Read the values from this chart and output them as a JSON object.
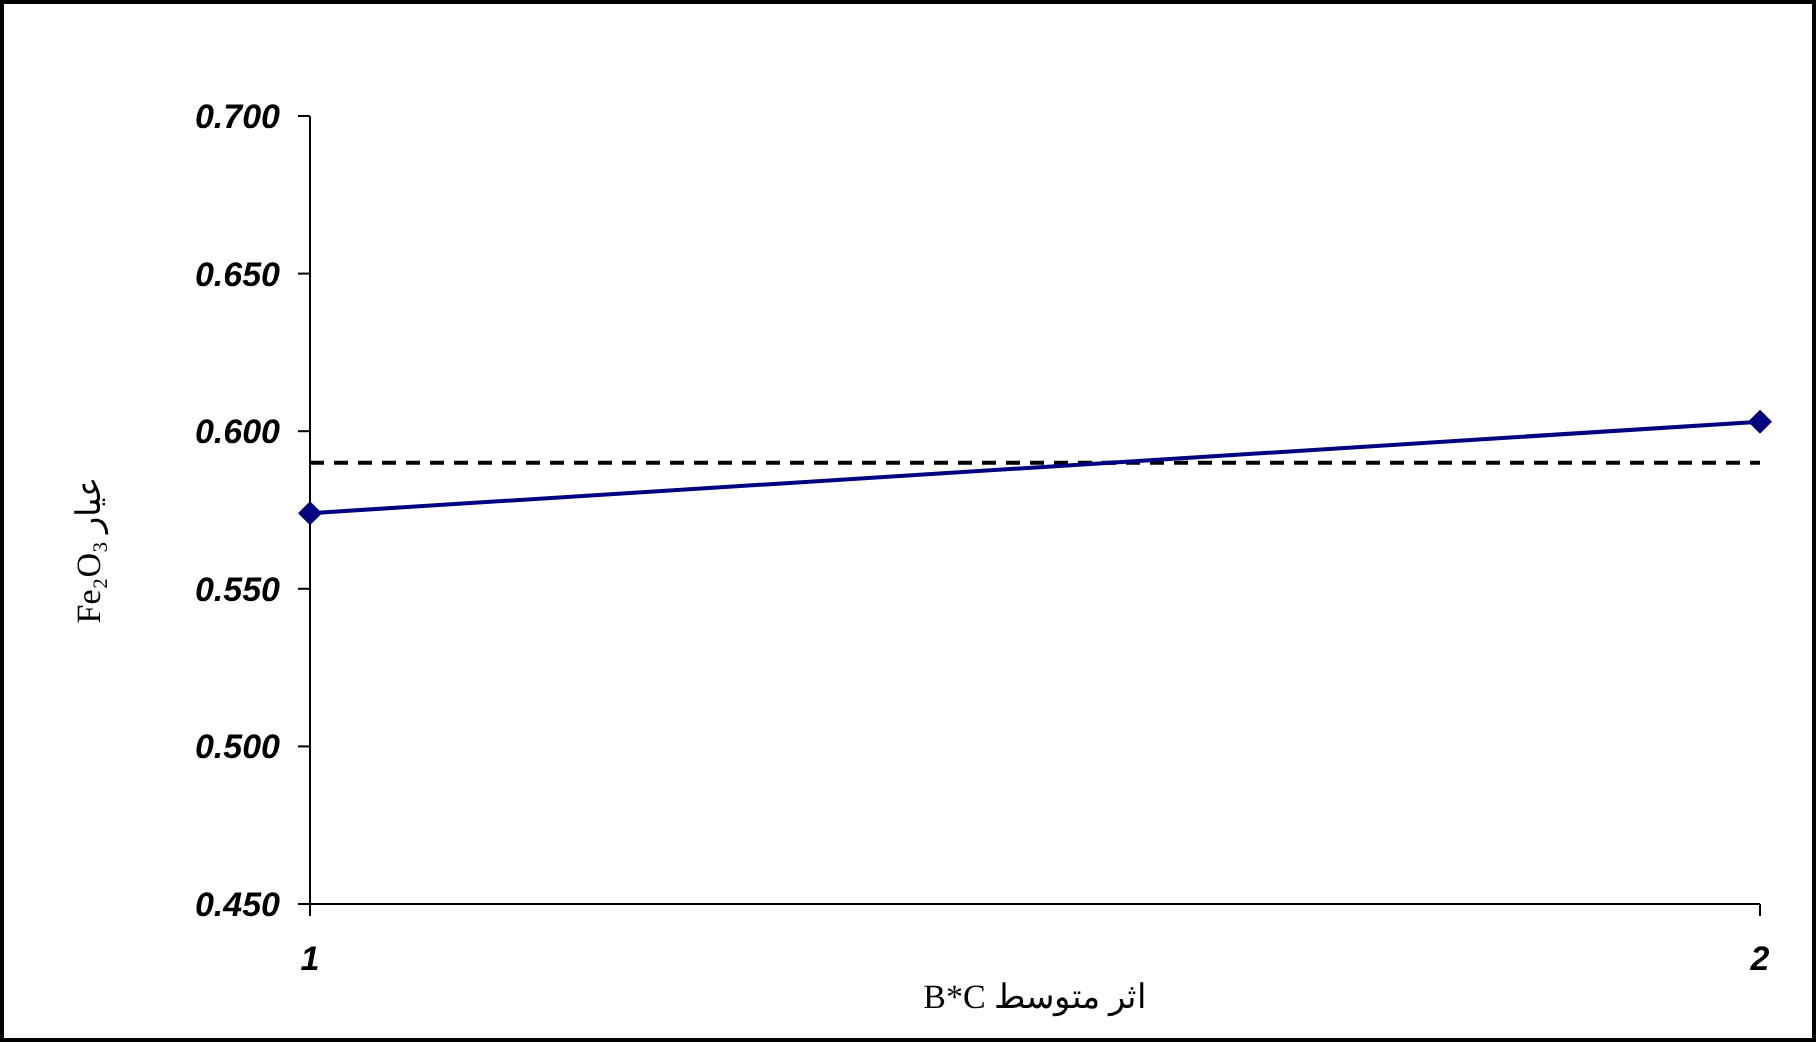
{
  "chart_data": {
    "type": "line",
    "xlabel": "اثر متوسط B*C",
    "ylabel": "عيار Fe₂O₃",
    "x": [
      1,
      2
    ],
    "xlim": [
      1,
      2
    ],
    "xticks": [
      1,
      2
    ],
    "ylim": [
      0.45,
      0.7
    ],
    "yticks": [
      {
        "value": 0.45,
        "label": "0.450"
      },
      {
        "value": 0.5,
        "label": "0.500"
      },
      {
        "value": 0.55,
        "label": "0.550"
      },
      {
        "value": 0.6,
        "label": "0.600"
      },
      {
        "value": 0.65,
        "label": "0.650"
      },
      {
        "value": 0.7,
        "label": "0.700"
      }
    ],
    "series": [
      {
        "color": "#000080",
        "values": [
          0.574,
          0.603
        ]
      }
    ],
    "ref_lines": [
      {
        "axis": "y",
        "value": 0.59,
        "color": "#000000",
        "line_style": "dashed"
      }
    ],
    "marker": "diamond",
    "line_style": "solid"
  }
}
